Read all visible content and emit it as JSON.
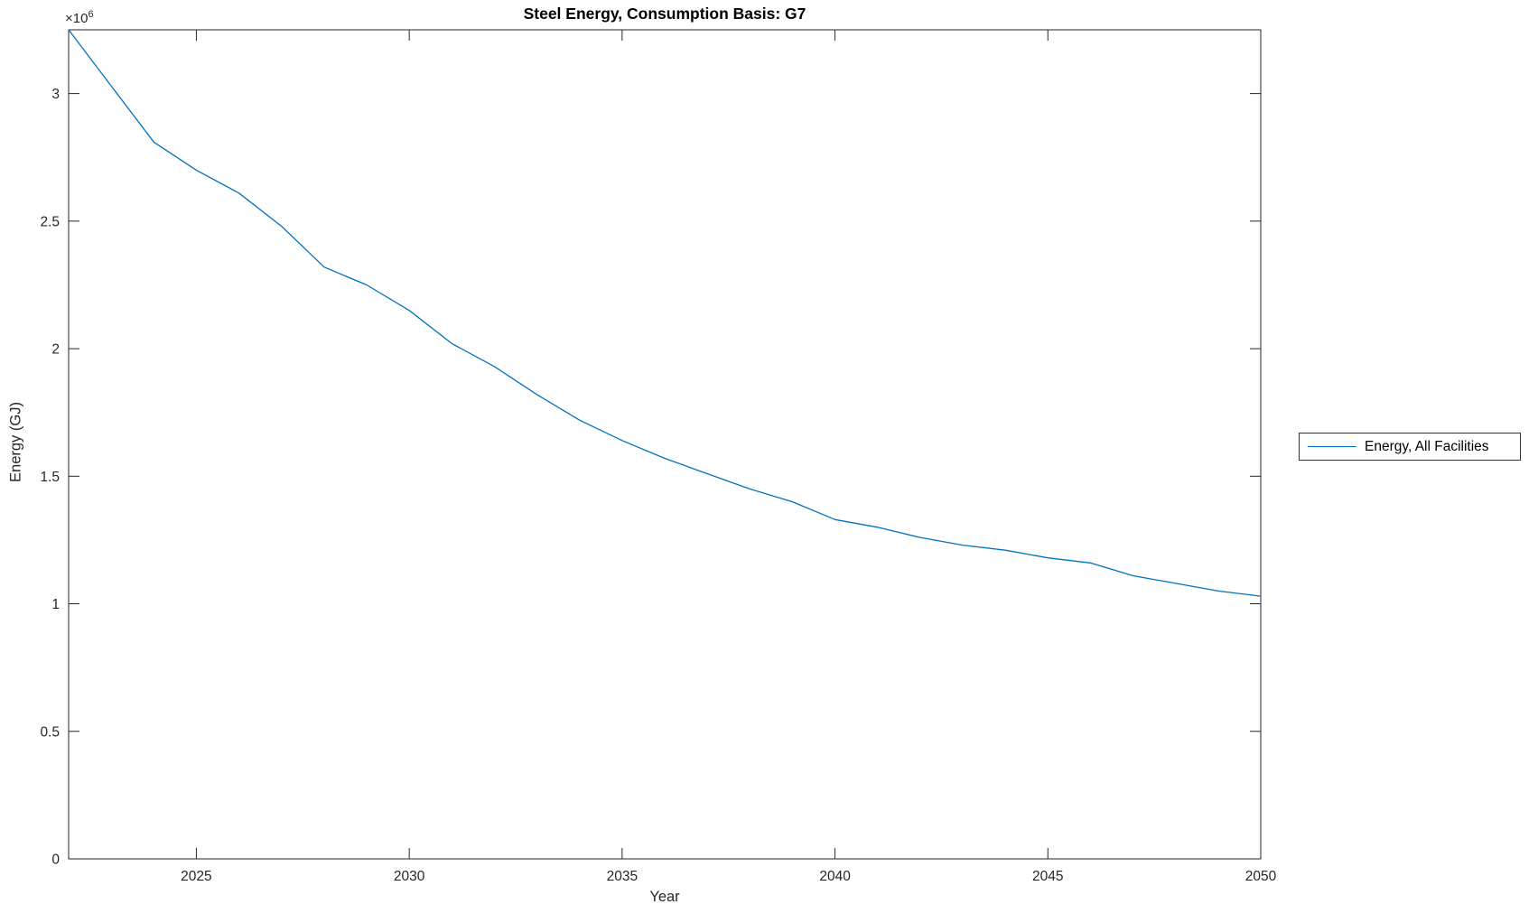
{
  "figure": {
    "background": "#ffffff",
    "axes_color": "#262626",
    "title": "Steel Energy, Consumption Basis: G7",
    "offset_text": {
      "base": "×10",
      "exponent": "6"
    }
  },
  "chart_data": {
    "type": "line",
    "title": "Steel Energy, Consumption Basis: G7",
    "xlabel": "Year",
    "ylabel": "Energy (GJ)",
    "xlim": [
      2022,
      2050
    ],
    "ylim": [
      0,
      3250000
    ],
    "grid": false,
    "x": [
      2022,
      2023,
      2024,
      2025,
      2026,
      2027,
      2028,
      2029,
      2030,
      2031,
      2032,
      2033,
      2034,
      2035,
      2036,
      2037,
      2038,
      2039,
      2040,
      2041,
      2042,
      2043,
      2044,
      2045,
      2046,
      2047,
      2048,
      2049,
      2050
    ],
    "series": [
      {
        "name": "Energy, All Facilities",
        "color": "#0072BD",
        "values": [
          3250000,
          3030000,
          2810000,
          2700000,
          2610000,
          2480000,
          2320000,
          2250000,
          2150000,
          2020000,
          1930000,
          1820000,
          1720000,
          1640000,
          1570000,
          1510000,
          1450000,
          1400000,
          1330000,
          1300000,
          1260000,
          1230000,
          1210000,
          1180000,
          1160000,
          1110000,
          1080000,
          1050000,
          1030000
        ]
      }
    ],
    "xticks": {
      "values": [
        2025,
        2030,
        2035,
        2040,
        2045,
        2050
      ],
      "labels": [
        "2025",
        "2030",
        "2035",
        "2040",
        "2045",
        "2050"
      ]
    },
    "yticks": {
      "values": [
        0,
        500000,
        1000000,
        1500000,
        2000000,
        2500000,
        3000000
      ],
      "labels": [
        "0",
        "0.5",
        "1",
        "1.5",
        "2",
        "2.5",
        "3"
      ]
    },
    "y_multiplier_text": "×10⁶",
    "legend": {
      "position": "right-outside",
      "entries": [
        "Energy, All Facilities"
      ]
    }
  }
}
